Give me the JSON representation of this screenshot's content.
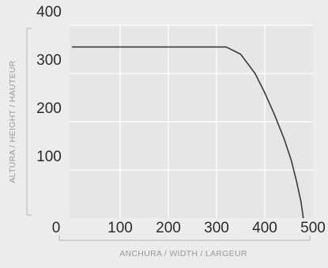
{
  "chart_data": {
    "type": "line",
    "x_label": "ANCHURA / WIDTH / LARGEUR",
    "y_label": "ALTURA / HEIGHT / HAUTEUR",
    "x": [
      0,
      320,
      350,
      380,
      400,
      420,
      440,
      455,
      465,
      475,
      480
    ],
    "series": [
      {
        "color": "#3a3a3a",
        "values": [
          355,
          355,
          340,
          300,
          260,
          215,
          165,
          120,
          80,
          35,
          0
        ]
      }
    ],
    "xlim": [
      0,
      500
    ],
    "xticks": [
      0,
      100,
      200,
      300,
      400,
      500
    ],
    "ylim": [
      0,
      400
    ],
    "yticks": [
      100,
      200,
      300,
      400
    ],
    "grid": true
  }
}
